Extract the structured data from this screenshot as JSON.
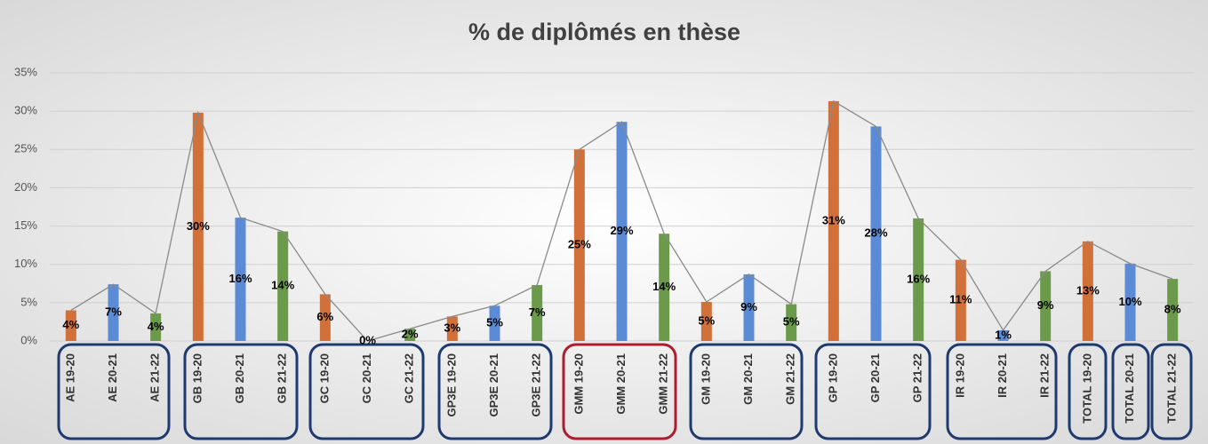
{
  "chart_data": {
    "type": "bar",
    "title": "% de diplômés en thèse",
    "categories": [
      "AE 19-20",
      "AE 20-21",
      "AE 21-22",
      "GB 19-20",
      "GB 20-21",
      "GB 21-22",
      "GC 19-20",
      "GC 20-21",
      "GC 21-22",
      "GP3E 19-20",
      "GP3E 20-21",
      "GP3E 21-22",
      "GMM 19-20",
      "GMM 20-21",
      "GMM 21-22",
      "GM 19-20",
      "GM 20-21",
      "GM 21-22",
      "GP 19-20",
      "GP 20-21",
      "GP 21-22",
      "IR 19-20",
      "IR 20-21",
      "IR 21-22",
      "TOTAL 19-20",
      "TOTAL 20-21",
      "TOTAL 21-22"
    ],
    "values": [
      4.0,
      7.4,
      3.6,
      29.8,
      16.1,
      14.3,
      6.1,
      0,
      1.6,
      3.2,
      4.6,
      7.3,
      25.0,
      28.6,
      14.0,
      5.1,
      8.7,
      4.8,
      31.3,
      28.0,
      16.0,
      10.6,
      1.4,
      9.1,
      13.0,
      10.1,
      8.1
    ],
    "value_labels": [
      "4%",
      "7%",
      "4%",
      "30%",
      "16%",
      "14%",
      "6%",
      "0%",
      "2%",
      "3%",
      "5%",
      "7%",
      "25%",
      "29%",
      "14%",
      "5%",
      "9%",
      "5%",
      "31%",
      "28%",
      "16%",
      "11%",
      "1%",
      "9%",
      "13%",
      "10%",
      "8%"
    ],
    "colors": [
      "#d2703a",
      "#5b8bd4",
      "#6a9a4a",
      "#d2703a",
      "#5b8bd4",
      "#6a9a4a",
      "#d2703a",
      "#5b8bd4",
      "#6a9a4a",
      "#d2703a",
      "#5b8bd4",
      "#6a9a4a",
      "#d2703a",
      "#5b8bd4",
      "#6a9a4a",
      "#d2703a",
      "#5b8bd4",
      "#6a9a4a",
      "#d2703a",
      "#5b8bd4",
      "#6a9a4a",
      "#d2703a",
      "#5b8bd4",
      "#6a9a4a",
      "#d2703a",
      "#5b8bd4",
      "#6a9a4a"
    ],
    "line_color": "#8a8a8a",
    "ylim": [
      0,
      35
    ],
    "yticks": [
      {
        "value": 0,
        "label": "0%"
      },
      {
        "value": 5,
        "label": "5%"
      },
      {
        "value": 10,
        "label": "10%"
      },
      {
        "value": 15,
        "label": "15%"
      },
      {
        "value": 20,
        "label": "20%"
      },
      {
        "value": 25,
        "label": "25%"
      },
      {
        "value": 30,
        "label": "30%"
      },
      {
        "value": 35,
        "label": "35%"
      }
    ],
    "grid": true
  }
}
